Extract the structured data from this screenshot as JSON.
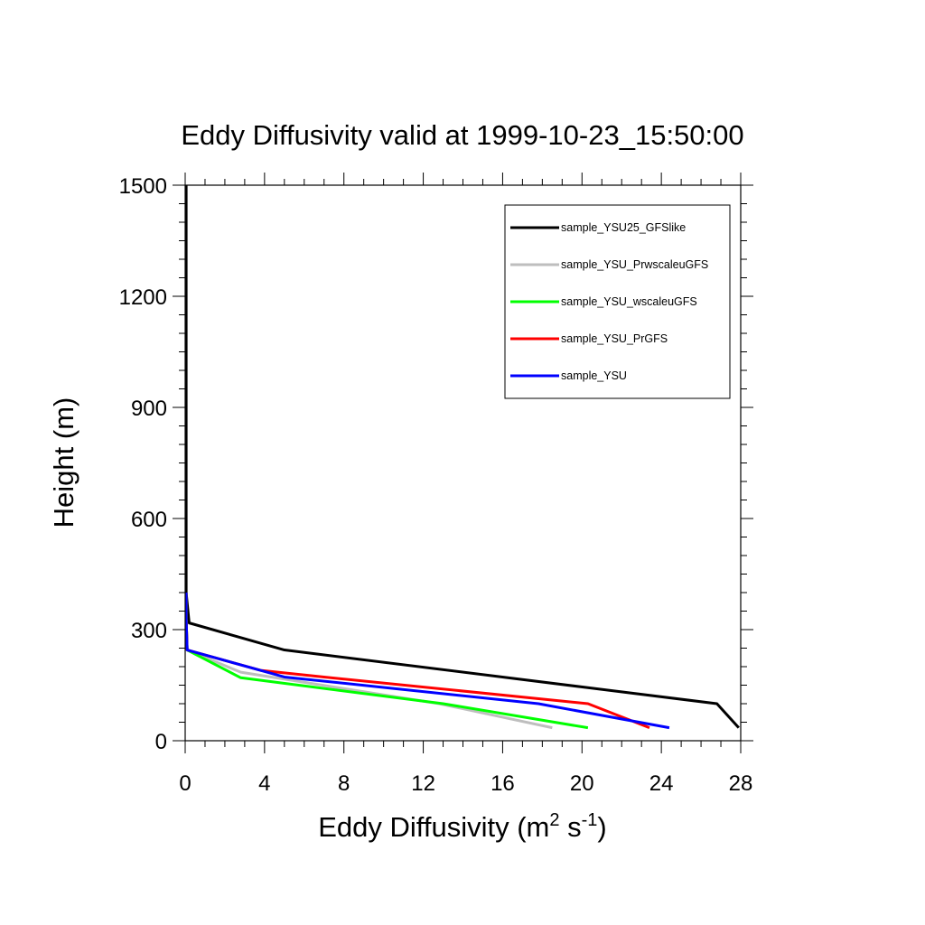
{
  "chart_data": {
    "type": "line",
    "title": "Eddy Diffusivity valid at 1999-10-23_15:50:00",
    "xlabel": {
      "base": "Eddy Diffusivity (m",
      "sup1": "2",
      "mid": " s",
      "sup2": "-1",
      "end": ")"
    },
    "ylabel": "Height (m)",
    "xlim": [
      0,
      28
    ],
    "ylim": [
      0,
      1500
    ],
    "xticks": [
      0,
      4,
      8,
      12,
      16,
      20,
      24,
      28
    ],
    "yticks": [
      0,
      300,
      600,
      900,
      1200,
      1500
    ],
    "grid": false,
    "legend_position": "top-right",
    "series": [
      {
        "name": "sample_YSU25_GFSlike",
        "color": "#000000",
        "x": [
          27.9,
          26.8,
          5.0,
          0.2,
          0.05,
          0.05,
          0.05,
          0.05,
          0.05
        ],
        "y": [
          35,
          100,
          245,
          318,
          400,
          600,
          900,
          1200,
          1500
        ]
      },
      {
        "name": "sample_YSU_PrwscaleuGFS",
        "color": "#bebebe",
        "x": [
          18.5,
          12.8,
          2.8,
          0.1,
          0.05,
          0.05
        ],
        "y": [
          35,
          100,
          185,
          245,
          330,
          400
        ]
      },
      {
        "name": "sample_YSU_wscaleuGFS",
        "color": "#00ff00",
        "x": [
          20.3,
          13.0,
          2.8,
          0.1,
          0.05,
          0.05
        ],
        "y": [
          35,
          100,
          170,
          245,
          330,
          400
        ]
      },
      {
        "name": "sample_YSU_PrGFS",
        "color": "#ff0000",
        "x": [
          23.4,
          20.3,
          7.0,
          3.8,
          0.1,
          0.05,
          0.05
        ],
        "y": [
          35,
          100,
          172,
          190,
          245,
          330,
          400
        ]
      },
      {
        "name": "sample_YSU",
        "color": "#0000ff",
        "x": [
          24.4,
          17.8,
          5.0,
          0.1,
          0.05,
          0.05
        ],
        "y": [
          35,
          100,
          172,
          245,
          330,
          400
        ]
      }
    ]
  }
}
